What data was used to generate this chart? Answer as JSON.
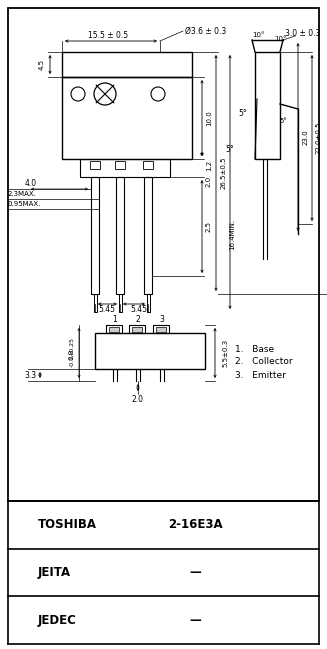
{
  "bg_color": "#ffffff",
  "line_color": "#000000",
  "text_color": "#000000",
  "fig_width": 3.27,
  "fig_height": 6.49,
  "table_rows": [
    {
      "label": "JEDEC",
      "value": "—"
    },
    {
      "label": "JEITA",
      "value": "—"
    },
    {
      "label": "TOSHIBA",
      "value": "2-16E3A"
    }
  ]
}
